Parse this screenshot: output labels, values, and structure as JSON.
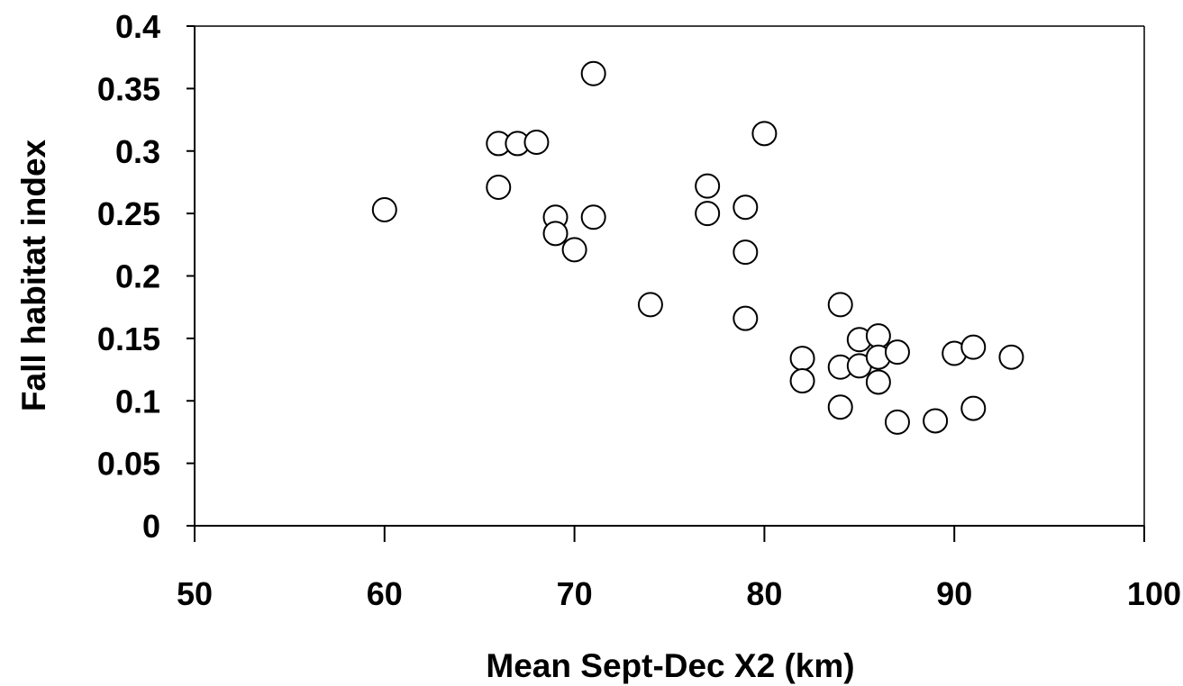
{
  "chart_data": {
    "type": "scatter",
    "title": "",
    "xlabel": "Mean Sept-Dec X2 (km)",
    "ylabel": "Fall habitat index",
    "xlim": [
      50,
      100
    ],
    "ylim": [
      0,
      0.4
    ],
    "xticks": [
      "50",
      "60",
      "70",
      "80",
      "90",
      "100"
    ],
    "yticks": [
      "0",
      "0.05",
      "0.1",
      "0.15",
      "0.2",
      "0.25",
      "0.3",
      "0.35",
      "0.4"
    ],
    "grid": false,
    "legend": "none",
    "marker": "open-circle",
    "colors": {
      "marker_fill": "#ffffff",
      "marker_stroke": "#000000",
      "axis": "#000000"
    },
    "series": [
      {
        "points": [
          [
            60,
            0.253
          ],
          [
            66,
            0.306
          ],
          [
            66,
            0.271
          ],
          [
            67,
            0.306
          ],
          [
            68,
            0.307
          ],
          [
            69,
            0.247
          ],
          [
            69,
            0.234
          ],
          [
            70,
            0.221
          ],
          [
            71,
            0.362
          ],
          [
            71,
            0.247
          ],
          [
            74,
            0.177
          ],
          [
            77,
            0.272
          ],
          [
            77,
            0.25
          ],
          [
            79,
            0.255
          ],
          [
            79,
            0.219
          ],
          [
            79,
            0.166
          ],
          [
            80,
            0.314
          ],
          [
            82,
            0.134
          ],
          [
            82,
            0.116
          ],
          [
            84,
            0.177
          ],
          [
            84,
            0.127
          ],
          [
            84,
            0.095
          ],
          [
            85,
            0.149
          ],
          [
            85,
            0.128
          ],
          [
            86,
            0.152
          ],
          [
            86,
            0.135
          ],
          [
            86,
            0.115
          ],
          [
            87,
            0.139
          ],
          [
            87,
            0.083
          ],
          [
            89,
            0.084
          ],
          [
            90,
            0.138
          ],
          [
            91,
            0.143
          ],
          [
            91,
            0.094
          ],
          [
            93,
            0.135
          ]
        ]
      }
    ]
  }
}
